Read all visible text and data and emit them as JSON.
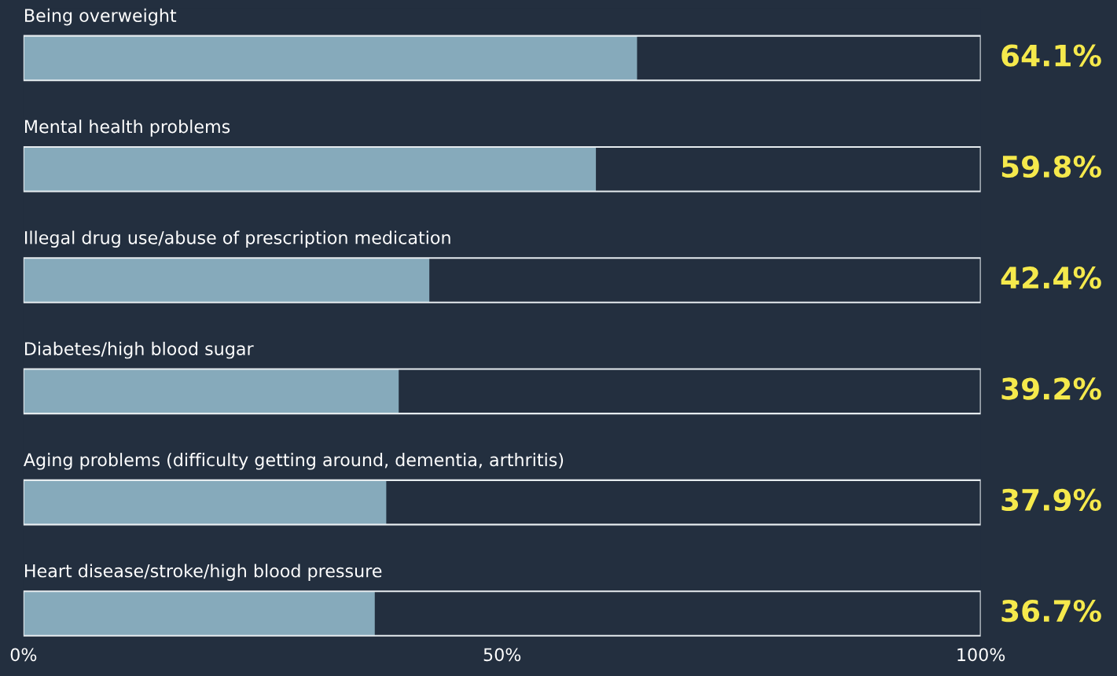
{
  "chart_data": {
    "type": "bar",
    "orientation": "horizontal",
    "categories": [
      "Being overweight",
      "Mental health problems",
      "Illegal drug use/abuse of prescription medication",
      "Diabetes/high blood sugar",
      "Aging problems (difficulty getting around, dementia, arthritis)",
      "Heart disease/stroke/high blood pressure"
    ],
    "values": [
      64.1,
      59.8,
      42.4,
      39.2,
      37.9,
      36.7
    ],
    "value_labels": [
      "64.1%",
      "59.8%",
      "42.4%",
      "39.2%",
      "37.9%",
      "36.7%"
    ],
    "color": "#86aabb",
    "xlim": [
      0,
      100
    ],
    "xticks": [
      {
        "value": 0,
        "label": "0%"
      },
      {
        "value": 50,
        "label": "50%"
      },
      {
        "value": 100,
        "label": "100%"
      }
    ],
    "grid": false,
    "legend": false
  }
}
